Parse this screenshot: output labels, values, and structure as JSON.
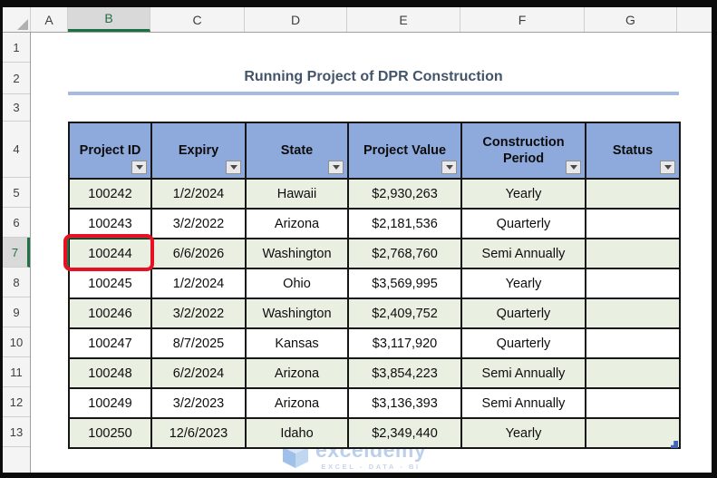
{
  "grid": {
    "columns": [
      "A",
      "B",
      "C",
      "D",
      "E",
      "F",
      "G"
    ],
    "selected_column": "B",
    "rows": [
      "1",
      "2",
      "3",
      "4",
      "5",
      "6",
      "7",
      "8",
      "9",
      "10",
      "11",
      "12",
      "13"
    ],
    "selected_row": "7",
    "active_cell": "B7"
  },
  "title": {
    "text": "Running Project of DPR Construction"
  },
  "table": {
    "headers": [
      "Project ID",
      "Expiry",
      "State",
      "Project Value",
      "Construction Period",
      "Status"
    ],
    "rows": [
      [
        "100242",
        "1/2/2024",
        "Hawaii",
        "$2,930,263",
        "Yearly",
        ""
      ],
      [
        "100243",
        "3/2/2022",
        "Arizona",
        "$2,181,536",
        "Quarterly",
        ""
      ],
      [
        "100244",
        "6/6/2026",
        "Washington",
        "$2,768,760",
        "Semi Annually",
        ""
      ],
      [
        "100245",
        "1/2/2024",
        "Ohio",
        "$3,569,995",
        "Yearly",
        ""
      ],
      [
        "100246",
        "3/2/2022",
        "Washington",
        "$2,409,752",
        "Quarterly",
        ""
      ],
      [
        "100247",
        "8/7/2025",
        "Kansas",
        "$3,117,920",
        "Quarterly",
        ""
      ],
      [
        "100248",
        "6/2/2024",
        "Arizona",
        "$3,854,223",
        "Semi Annually",
        ""
      ],
      [
        "100249",
        "3/2/2023",
        "Arizona",
        "$3,136,393",
        "Semi Annually",
        ""
      ],
      [
        "100250",
        "12/6/2023",
        "Idaho",
        "$2,349,440",
        "Yearly",
        ""
      ]
    ],
    "highlighted_cell": {
      "row": "7",
      "column": "B",
      "value": "100244"
    }
  },
  "watermark": {
    "brand": "exceldemy",
    "tagline": "EXCEL - DATA - BI"
  },
  "colors": {
    "header_fill": "#8EA9DB",
    "band_green": "#E9F0E2",
    "title_text": "#44546A",
    "title_underline": "#A6BBE1",
    "selection_green": "#217346",
    "annotation_red": "#E81123",
    "resize_handle_blue": "#3E67B8"
  }
}
